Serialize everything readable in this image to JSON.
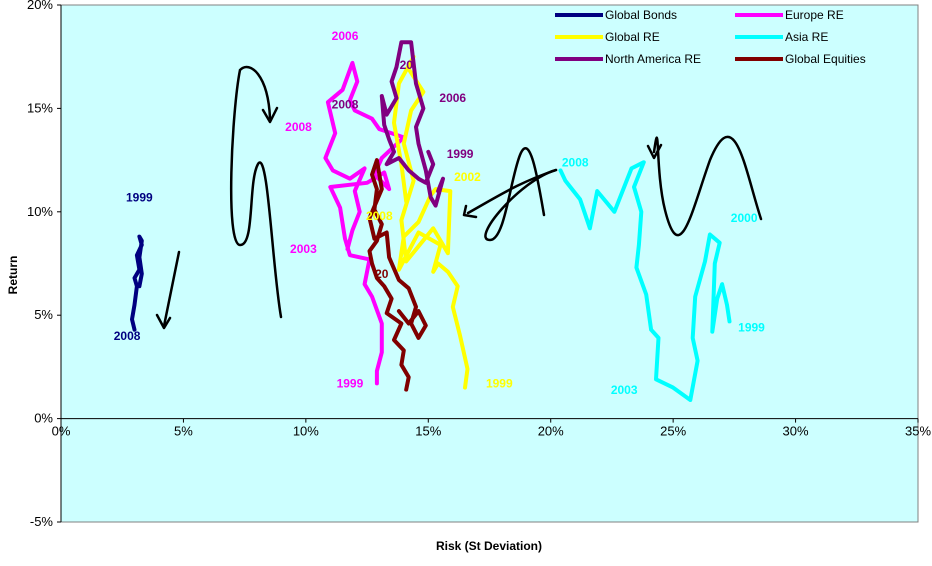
{
  "chart_data": {
    "type": "line",
    "title": "",
    "xlabel": "Risk (St Deviation)",
    "ylabel": "Return",
    "xlim": [
      0,
      35
    ],
    "ylim": [
      -5,
      20
    ],
    "x_ticks": [
      "0%",
      "5%",
      "10%",
      "15%",
      "20%",
      "25%",
      "30%",
      "35%"
    ],
    "y_ticks": [
      "-5%",
      "0%",
      "5%",
      "10%",
      "15%",
      "20%"
    ],
    "x_tick_values": [
      0,
      5,
      10,
      15,
      20,
      25,
      30,
      35
    ],
    "y_tick_values": [
      -5,
      0,
      5,
      10,
      15,
      20
    ],
    "plot_background": "#ccffff",
    "grid": false,
    "legend_position": "top-right",
    "series": [
      {
        "name": "Global Bonds",
        "color": "#000080",
        "points": [
          [
            3.0,
            4.3
          ],
          [
            2.9,
            4.8
          ],
          [
            3.0,
            5.5
          ],
          [
            3.1,
            6.4
          ],
          [
            3.0,
            6.8
          ],
          [
            3.2,
            7.2
          ],
          [
            3.1,
            7.9
          ],
          [
            3.3,
            8.4
          ],
          [
            3.2,
            8.8
          ],
          [
            3.3,
            8.6
          ],
          [
            3.2,
            7.8
          ],
          [
            3.3,
            7.0
          ],
          [
            3.2,
            6.4
          ]
        ]
      },
      {
        "name": "Europe RE",
        "color": "#ff00ff",
        "points": [
          [
            12.9,
            1.7
          ],
          [
            12.9,
            2.3
          ],
          [
            13.1,
            3.2
          ],
          [
            13.1,
            4.6
          ],
          [
            12.7,
            5.9
          ],
          [
            12.4,
            6.5
          ],
          [
            12.6,
            7.7
          ],
          [
            11.8,
            7.9
          ],
          [
            11.6,
            8.7
          ],
          [
            11.4,
            10.2
          ],
          [
            11.0,
            11.2
          ],
          [
            12.5,
            11.4
          ],
          [
            13.2,
            11.9
          ],
          [
            13.4,
            11.1
          ],
          [
            12.8,
            11.8
          ],
          [
            13.1,
            12.6
          ],
          [
            14.0,
            13.6
          ],
          [
            13.0,
            14.0
          ],
          [
            12.7,
            14.5
          ],
          [
            12.0,
            14.9
          ],
          [
            11.8,
            15.4
          ],
          [
            12.1,
            16.3
          ],
          [
            11.9,
            17.2
          ],
          [
            11.5,
            15.9
          ],
          [
            10.9,
            15.3
          ],
          [
            11.2,
            13.8
          ],
          [
            10.8,
            12.6
          ],
          [
            11.1,
            12.0
          ],
          [
            11.8,
            11.6
          ],
          [
            12.4,
            12.1
          ],
          [
            12.0,
            11.0
          ],
          [
            12.2,
            10.0
          ],
          [
            11.9,
            9.1
          ],
          [
            11.7,
            8.2
          ]
        ]
      },
      {
        "name": "Global RE",
        "color": "#ffff00",
        "points": [
          [
            16.5,
            1.5
          ],
          [
            16.6,
            2.4
          ],
          [
            16.3,
            4.0
          ],
          [
            16.0,
            5.4
          ],
          [
            16.2,
            6.4
          ],
          [
            15.8,
            7.1
          ],
          [
            15.4,
            7.5
          ],
          [
            15.2,
            7.1
          ],
          [
            15.5,
            8.4
          ],
          [
            14.6,
            9.0
          ],
          [
            13.8,
            7.2
          ],
          [
            14.0,
            8.8
          ],
          [
            14.6,
            9.5
          ],
          [
            15.1,
            10.8
          ],
          [
            15.3,
            11.1
          ],
          [
            15.9,
            11.0
          ],
          [
            15.8,
            8.0
          ],
          [
            15.2,
            9.2
          ],
          [
            14.1,
            7.6
          ],
          [
            13.9,
            9.6
          ],
          [
            14.4,
            11.5
          ],
          [
            14.0,
            13.3
          ],
          [
            14.3,
            14.9
          ],
          [
            14.8,
            15.8
          ],
          [
            14.2,
            16.9
          ],
          [
            14.4,
            17.5
          ],
          [
            13.8,
            16.2
          ],
          [
            13.6,
            14.3
          ],
          [
            13.9,
            12.3
          ],
          [
            14.1,
            10.5
          ]
        ]
      },
      {
        "name": "Asia RE",
        "color": "#00ffff",
        "points": [
          [
            27.3,
            4.7
          ],
          [
            27.2,
            5.5
          ],
          [
            27.0,
            6.5
          ],
          [
            26.8,
            5.8
          ],
          [
            26.6,
            4.2
          ],
          [
            26.7,
            7.5
          ],
          [
            26.9,
            8.5
          ],
          [
            26.5,
            8.9
          ],
          [
            26.3,
            7.6
          ],
          [
            25.9,
            5.9
          ],
          [
            25.8,
            3.9
          ],
          [
            26.0,
            2.8
          ],
          [
            25.7,
            0.9
          ],
          [
            25.0,
            1.5
          ],
          [
            24.3,
            1.9
          ],
          [
            24.4,
            3.9
          ],
          [
            24.1,
            4.3
          ],
          [
            23.9,
            6.0
          ],
          [
            23.5,
            7.3
          ],
          [
            23.6,
            8.4
          ],
          [
            23.7,
            10.0
          ],
          [
            23.4,
            11.2
          ],
          [
            23.8,
            12.4
          ],
          [
            23.3,
            12.1
          ],
          [
            22.6,
            10.0
          ],
          [
            21.9,
            11.0
          ],
          [
            21.6,
            9.2
          ],
          [
            21.2,
            10.6
          ],
          [
            20.6,
            11.5
          ],
          [
            20.4,
            12.0
          ]
        ]
      },
      {
        "name": "North America RE",
        "color": "#800080",
        "points": [
          [
            15.4,
            11.0
          ],
          [
            15.6,
            11.6
          ],
          [
            15.3,
            10.3
          ],
          [
            15.1,
            10.7
          ],
          [
            14.9,
            12.0
          ],
          [
            14.6,
            13.3
          ],
          [
            14.5,
            14.1
          ],
          [
            14.8,
            15.0
          ],
          [
            14.5,
            16.2
          ],
          [
            14.3,
            18.2
          ],
          [
            13.9,
            18.2
          ],
          [
            13.7,
            17.0
          ],
          [
            13.5,
            16.3
          ],
          [
            13.7,
            15.5
          ],
          [
            13.3,
            14.7
          ],
          [
            13.1,
            15.6
          ],
          [
            13.2,
            14.2
          ],
          [
            13.4,
            13.5
          ],
          [
            13.6,
            12.9
          ],
          [
            13.3,
            12.3
          ],
          [
            13.8,
            12.6
          ],
          [
            14.2,
            12.0
          ],
          [
            14.6,
            11.6
          ],
          [
            14.9,
            11.4
          ],
          [
            15.2,
            12.3
          ],
          [
            15.0,
            12.9
          ]
        ]
      },
      {
        "name": "Global Equities",
        "color": "#800000",
        "points": [
          [
            14.1,
            1.4
          ],
          [
            14.2,
            2.0
          ],
          [
            13.9,
            2.6
          ],
          [
            14.0,
            3.3
          ],
          [
            13.6,
            3.8
          ],
          [
            13.9,
            4.6
          ],
          [
            13.3,
            5.1
          ],
          [
            13.5,
            5.8
          ],
          [
            13.2,
            6.4
          ],
          [
            12.9,
            6.8
          ],
          [
            12.7,
            7.5
          ],
          [
            12.6,
            8.1
          ],
          [
            12.9,
            8.6
          ],
          [
            13.1,
            9.4
          ],
          [
            12.8,
            10.1
          ],
          [
            12.9,
            11.1
          ],
          [
            12.7,
            11.8
          ],
          [
            12.9,
            12.5
          ],
          [
            13.1,
            11.1
          ],
          [
            12.6,
            9.7
          ],
          [
            12.8,
            8.7
          ],
          [
            13.3,
            9.0
          ],
          [
            13.4,
            7.8
          ],
          [
            13.8,
            6.7
          ],
          [
            14.2,
            6.3
          ],
          [
            14.5,
            5.4
          ],
          [
            14.3,
            4.6
          ],
          [
            14.6,
            3.9
          ],
          [
            14.9,
            4.5
          ],
          [
            14.6,
            5.2
          ],
          [
            14.2,
            4.6
          ],
          [
            13.8,
            5.2
          ]
        ]
      }
    ],
    "annotations": [
      {
        "text": "1999",
        "x": 3.2,
        "y": 10.5,
        "color": "#000080"
      },
      {
        "text": "2008",
        "x": 2.7,
        "y": 3.8,
        "color": "#000080"
      },
      {
        "text": "2006",
        "x": 11.6,
        "y": 18.3,
        "color": "#ff00ff"
      },
      {
        "text": "2008",
        "x": 9.7,
        "y": 13.9,
        "color": "#ff00ff"
      },
      {
        "text": "2003",
        "x": 9.9,
        "y": 8.0,
        "color": "#ff00ff"
      },
      {
        "text": "1999",
        "x": 11.8,
        "y": 1.5,
        "color": "#ff00ff"
      },
      {
        "text": "2008",
        "x": 11.6,
        "y": 15.0,
        "color": "#800080"
      },
      {
        "text": "2006",
        "x": 16.0,
        "y": 15.3,
        "color": "#800080"
      },
      {
        "text": "1999",
        "x": 16.3,
        "y": 12.6,
        "color": "#800080"
      },
      {
        "text": "20",
        "x": 14.1,
        "y": 16.9,
        "color": "#800080"
      },
      {
        "text": "2002",
        "x": 16.6,
        "y": 11.5,
        "color": "#ffff00"
      },
      {
        "text": "1999",
        "x": 17.9,
        "y": 1.5,
        "color": "#ffff00"
      },
      {
        "text": "2008",
        "x": 13.0,
        "y": 9.6,
        "color": "#ffff00"
      },
      {
        "text": "20",
        "x": 13.1,
        "y": 6.8,
        "color": "#800000"
      },
      {
        "text": "2008",
        "x": 21.0,
        "y": 12.2,
        "color": "#00ffff"
      },
      {
        "text": "2000",
        "x": 27.9,
        "y": 9.5,
        "color": "#00ffff"
      },
      {
        "text": "1999",
        "x": 28.2,
        "y": 4.2,
        "color": "#00ffff"
      },
      {
        "text": "2003",
        "x": 23.0,
        "y": 1.2,
        "color": "#00ffff"
      }
    ]
  }
}
